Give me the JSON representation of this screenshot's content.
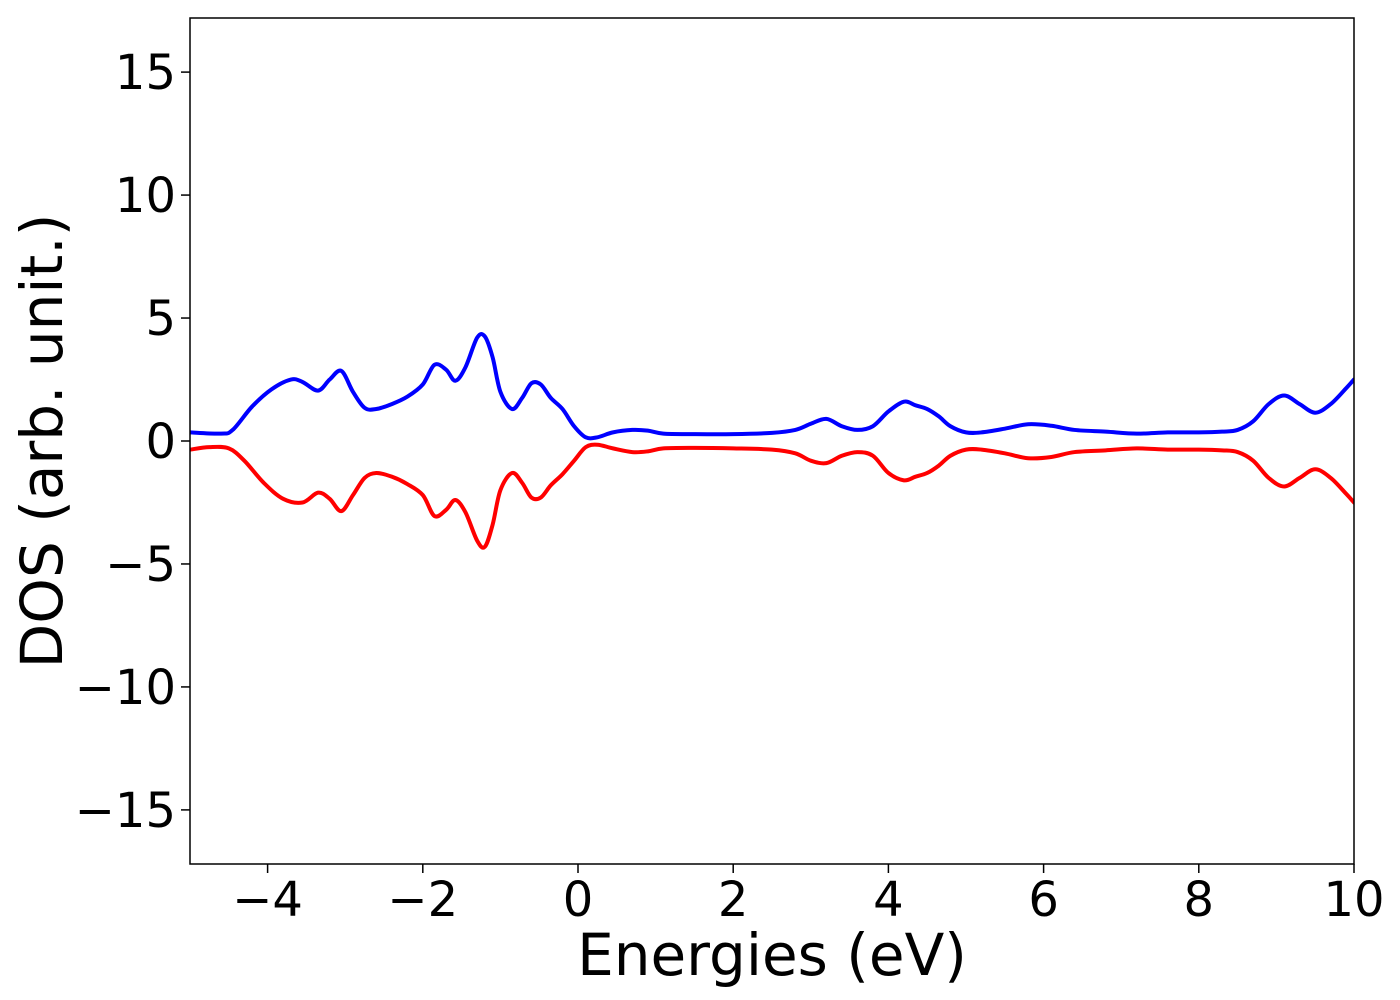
{
  "chart_data": {
    "type": "line",
    "title": "",
    "xlabel": "Energies (eV)",
    "ylabel": "DOS (arb. unit.)",
    "xlim": [
      -5,
      10
    ],
    "ylim": [
      -17.2,
      17.2
    ],
    "xticks": [
      -4,
      -2,
      0,
      2,
      4,
      6,
      8,
      10
    ],
    "xtick_labels": [
      "−4",
      "−2",
      "0",
      "2",
      "4",
      "6",
      "8",
      "10"
    ],
    "yticks": [
      15,
      10,
      5,
      0,
      -5,
      -10,
      -15
    ],
    "ytick_labels": [
      "15",
      "10",
      "5",
      "0",
      "−5",
      "−10",
      "−15"
    ],
    "grid": false,
    "legend": "none",
    "series": [
      {
        "color": "#0000ff",
        "x": [
          -5.0,
          -4.6,
          -4.45,
          -4.2,
          -3.95,
          -3.7,
          -3.55,
          -3.35,
          -3.2,
          -3.05,
          -2.9,
          -2.75,
          -2.6,
          -2.4,
          -2.2,
          -2.0,
          -1.85,
          -1.7,
          -1.58,
          -1.45,
          -1.3,
          -1.2,
          -1.1,
          -1.0,
          -0.85,
          -0.72,
          -0.6,
          -0.48,
          -0.35,
          -0.2,
          -0.05,
          0.1,
          0.25,
          0.45,
          0.7,
          0.9,
          1.1,
          1.5,
          2.0,
          2.5,
          2.8,
          3.0,
          3.2,
          3.4,
          3.6,
          3.8,
          4.0,
          4.2,
          4.35,
          4.5,
          4.65,
          4.8,
          5.0,
          5.2,
          5.5,
          5.8,
          6.1,
          6.4,
          6.8,
          7.2,
          7.6,
          8.0,
          8.3,
          8.5,
          8.7,
          8.9,
          9.1,
          9.3,
          9.5,
          9.7,
          9.9,
          10.0
        ],
        "y": [
          0.35,
          0.3,
          0.45,
          1.4,
          2.1,
          2.5,
          2.4,
          2.05,
          2.5,
          2.85,
          2.0,
          1.35,
          1.3,
          1.5,
          1.8,
          2.3,
          3.1,
          2.9,
          2.45,
          3.0,
          4.2,
          4.25,
          3.4,
          2.0,
          1.3,
          1.75,
          2.35,
          2.3,
          1.75,
          1.3,
          0.6,
          0.15,
          0.15,
          0.35,
          0.45,
          0.42,
          0.3,
          0.28,
          0.28,
          0.33,
          0.45,
          0.7,
          0.9,
          0.6,
          0.45,
          0.6,
          1.2,
          1.6,
          1.45,
          1.3,
          1.0,
          0.6,
          0.35,
          0.35,
          0.5,
          0.68,
          0.62,
          0.45,
          0.38,
          0.3,
          0.35,
          0.35,
          0.38,
          0.45,
          0.8,
          1.5,
          1.85,
          1.5,
          1.15,
          1.5,
          2.15,
          2.5
        ]
      },
      {
        "color": "#ff0000",
        "x": [
          -5.0,
          -4.75,
          -4.5,
          -4.3,
          -4.05,
          -3.8,
          -3.55,
          -3.35,
          -3.2,
          -3.05,
          -2.9,
          -2.75,
          -2.6,
          -2.4,
          -2.2,
          -2.0,
          -1.85,
          -1.7,
          -1.58,
          -1.45,
          -1.3,
          -1.2,
          -1.1,
          -1.0,
          -0.85,
          -0.72,
          -0.6,
          -0.48,
          -0.35,
          -0.2,
          -0.05,
          0.1,
          0.25,
          0.45,
          0.7,
          0.9,
          1.1,
          1.5,
          2.0,
          2.5,
          2.8,
          3.0,
          3.2,
          3.4,
          3.6,
          3.8,
          4.0,
          4.2,
          4.35,
          4.5,
          4.65,
          4.8,
          5.0,
          5.2,
          5.5,
          5.8,
          6.1,
          6.4,
          6.8,
          7.2,
          7.6,
          8.0,
          8.3,
          8.5,
          8.7,
          8.9,
          9.1,
          9.3,
          9.5,
          9.7,
          9.9,
          10.0
        ],
        "y": [
          -0.35,
          -0.25,
          -0.3,
          -0.8,
          -1.7,
          -2.35,
          -2.5,
          -2.1,
          -2.35,
          -2.85,
          -2.2,
          -1.5,
          -1.3,
          -1.45,
          -1.75,
          -2.2,
          -3.05,
          -2.8,
          -2.4,
          -2.9,
          -4.05,
          -4.3,
          -3.4,
          -2.0,
          -1.3,
          -1.7,
          -2.3,
          -2.3,
          -1.8,
          -1.35,
          -0.8,
          -0.25,
          -0.15,
          -0.3,
          -0.45,
          -0.42,
          -0.3,
          -0.28,
          -0.3,
          -0.35,
          -0.5,
          -0.8,
          -0.9,
          -0.6,
          -0.45,
          -0.6,
          -1.3,
          -1.6,
          -1.45,
          -1.3,
          -1.0,
          -0.6,
          -0.35,
          -0.35,
          -0.5,
          -0.7,
          -0.65,
          -0.45,
          -0.38,
          -0.3,
          -0.35,
          -0.35,
          -0.38,
          -0.45,
          -0.8,
          -1.5,
          -1.85,
          -1.5,
          -1.15,
          -1.5,
          -2.15,
          -2.5
        ]
      }
    ]
  }
}
